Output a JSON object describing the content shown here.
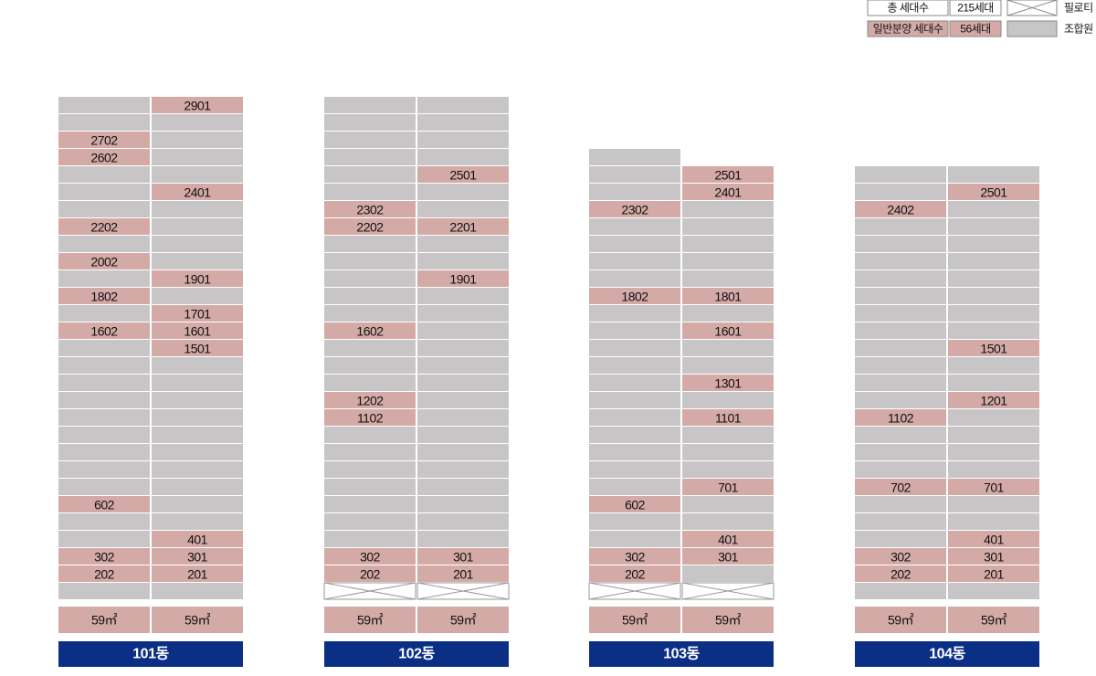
{
  "legend": {
    "total_label": "총 세대수",
    "total_value": "215세대",
    "sale_label": "일반분양 세대수",
    "sale_value": "56세대",
    "pilotis": "필로티",
    "member": "조합원"
  },
  "buildings": [
    {
      "name": "101동",
      "types": [
        "59㎡",
        "59㎡"
      ],
      "pilotis": false,
      "rows": [
        [
          null,
          "2901"
        ],
        [
          null,
          null
        ],
        [
          "2702",
          null
        ],
        [
          "2602",
          null
        ],
        [
          null,
          null
        ],
        [
          null,
          "2401"
        ],
        [
          null,
          null
        ],
        [
          "2202",
          null
        ],
        [
          null,
          null
        ],
        [
          "2002",
          null
        ],
        [
          null,
          "1901"
        ],
        [
          "1802",
          null
        ],
        [
          null,
          "1701"
        ],
        [
          "1602",
          "1601"
        ],
        [
          null,
          "1501"
        ],
        [
          null,
          null
        ],
        [
          null,
          null
        ],
        [
          null,
          null
        ],
        [
          null,
          null
        ],
        [
          null,
          null
        ],
        [
          null,
          null
        ],
        [
          null,
          null
        ],
        [
          null,
          null
        ],
        [
          "602",
          null
        ],
        [
          null,
          null
        ],
        [
          null,
          "401"
        ],
        [
          "302",
          "301"
        ],
        [
          "202",
          "201"
        ],
        [
          null,
          null
        ]
      ]
    },
    {
      "name": "102동",
      "types": [
        "59㎡",
        "59㎡"
      ],
      "pilotis": true,
      "rows": [
        [
          null,
          null
        ],
        [
          null,
          null
        ],
        [
          null,
          null
        ],
        [
          null,
          null
        ],
        [
          null,
          "2501"
        ],
        [
          null,
          null
        ],
        [
          "2302",
          null
        ],
        [
          "2202",
          "2201"
        ],
        [
          null,
          null
        ],
        [
          null,
          null
        ],
        [
          null,
          "1901"
        ],
        [
          null,
          null
        ],
        [
          null,
          null
        ],
        [
          "1602",
          null
        ],
        [
          null,
          null
        ],
        [
          null,
          null
        ],
        [
          null,
          null
        ],
        [
          "1202",
          null
        ],
        [
          "1102",
          null
        ],
        [
          null,
          null
        ],
        [
          null,
          null
        ],
        [
          null,
          null
        ],
        [
          null,
          null
        ],
        [
          null,
          null
        ],
        [
          null,
          null
        ],
        [
          null,
          null
        ],
        [
          "302",
          "301"
        ],
        [
          "202",
          "201"
        ],
        [
          null,
          null
        ]
      ]
    },
    {
      "name": "103동",
      "types": [
        "59㎡",
        "59㎡"
      ],
      "pilotis": true,
      "rows": [
        [
          null
        ],
        [
          null,
          "2501"
        ],
        [
          null,
          "2401"
        ],
        [
          "2302",
          null
        ],
        [
          null,
          null
        ],
        [
          null,
          null
        ],
        [
          null,
          null
        ],
        [
          null,
          null
        ],
        [
          "1802",
          "1801"
        ],
        [
          null,
          null
        ],
        [
          null,
          "1601"
        ],
        [
          null,
          null
        ],
        [
          null,
          null
        ],
        [
          null,
          "1301"
        ],
        [
          null,
          null
        ],
        [
          null,
          "1101"
        ],
        [
          null,
          null
        ],
        [
          null,
          null
        ],
        [
          null,
          null
        ],
        [
          null,
          "701"
        ],
        [
          "602",
          null
        ],
        [
          null,
          null
        ],
        [
          null,
          "401"
        ],
        [
          "302",
          "301"
        ],
        [
          "202",
          null
        ],
        [
          null,
          null
        ]
      ]
    },
    {
      "name": "104동",
      "types": [
        "59㎡",
        "59㎡"
      ],
      "pilotis": false,
      "rows": [
        [
          null,
          null
        ],
        [
          null,
          "2501"
        ],
        [
          "2402",
          null
        ],
        [
          null,
          null
        ],
        [
          null,
          null
        ],
        [
          null,
          null
        ],
        [
          null,
          null
        ],
        [
          null,
          null
        ],
        [
          null,
          null
        ],
        [
          null,
          null
        ],
        [
          null,
          "1501"
        ],
        [
          null,
          null
        ],
        [
          null,
          null
        ],
        [
          null,
          "1201"
        ],
        [
          "1102",
          null
        ],
        [
          null,
          null
        ],
        [
          null,
          null
        ],
        [
          null,
          null
        ],
        [
          "702",
          "701"
        ],
        [
          null,
          null
        ],
        [
          null,
          null
        ],
        [
          null,
          "401"
        ],
        [
          "302",
          "301"
        ],
        [
          "202",
          "201"
        ],
        [
          null,
          null
        ]
      ]
    }
  ]
}
